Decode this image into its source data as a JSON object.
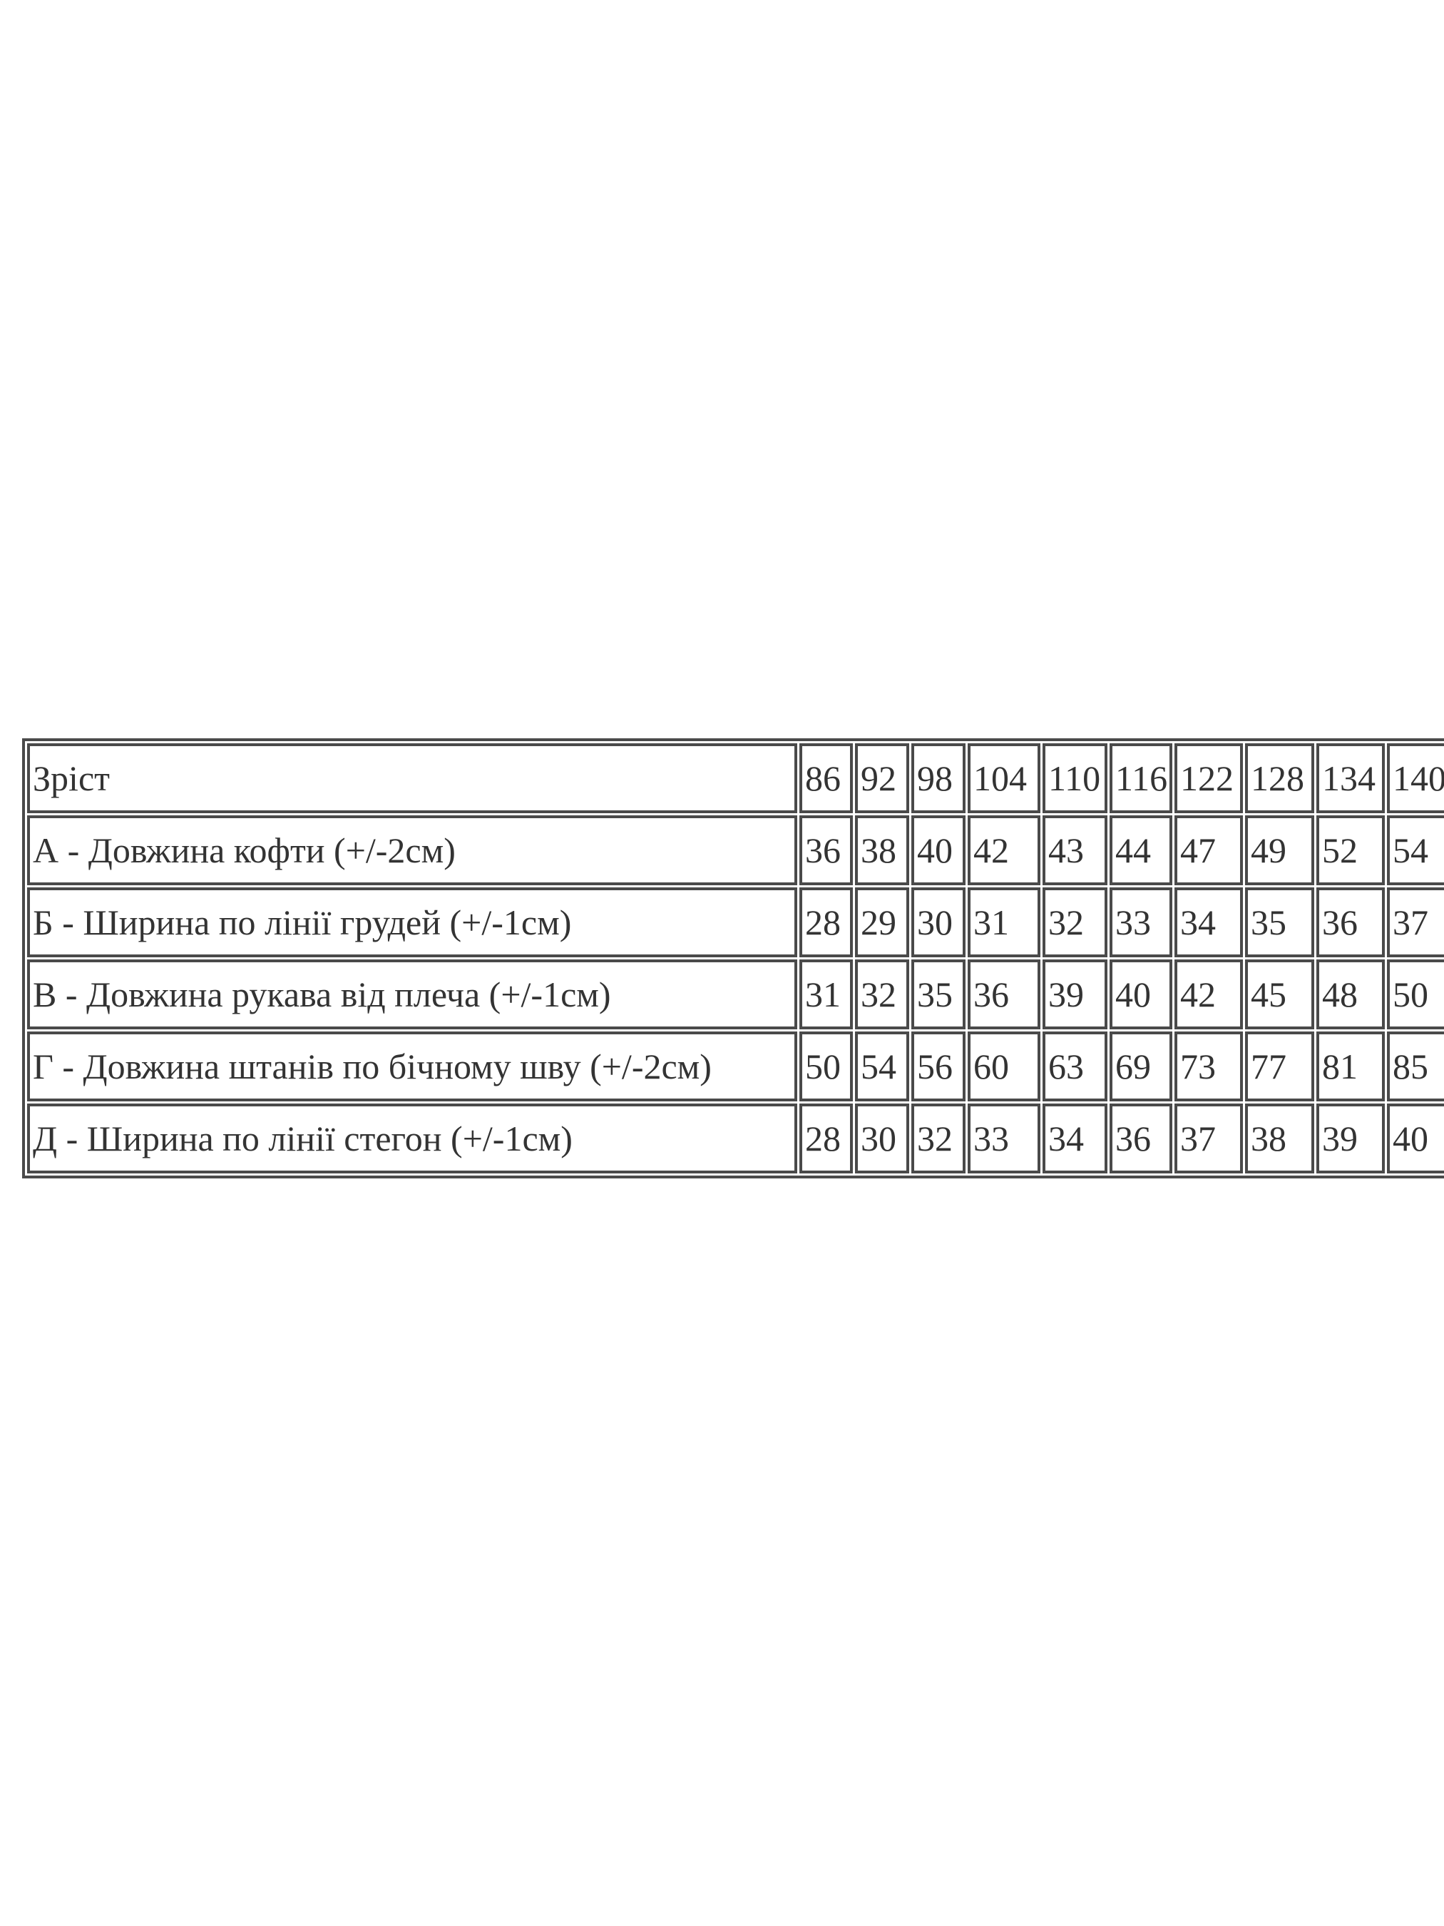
{
  "table": {
    "rows": [
      [
        "Зріст",
        "86",
        "92",
        "98",
        "104",
        "110",
        "116",
        "122",
        "128",
        "134",
        "140"
      ],
      [
        "А - Довжина кофти (+/-2см)",
        "36",
        "38",
        "40",
        "42",
        "43",
        "44",
        "47",
        "49",
        "52",
        "54"
      ],
      [
        "Б - Ширина по лінії грудей (+/-1см)",
        "28",
        "29",
        "30",
        "31",
        "32",
        "33",
        "34",
        "35",
        "36",
        "37"
      ],
      [
        "В - Довжина рукава від плеча (+/-1см)",
        "31",
        "32",
        "35",
        "36",
        "39",
        "40",
        "42",
        "45",
        "48",
        "50"
      ],
      [
        "Г - Довжина штанів по бічному шву (+/-2см)",
        "50",
        "54",
        "56",
        "60",
        "63",
        "69",
        "73",
        "77",
        "81",
        "85"
      ],
      [
        "Д - Ширина по лінії стегон (+/-1см)",
        "28",
        "30",
        "32",
        "33",
        "34",
        "36",
        "37",
        "38",
        "39",
        "40"
      ]
    ]
  }
}
